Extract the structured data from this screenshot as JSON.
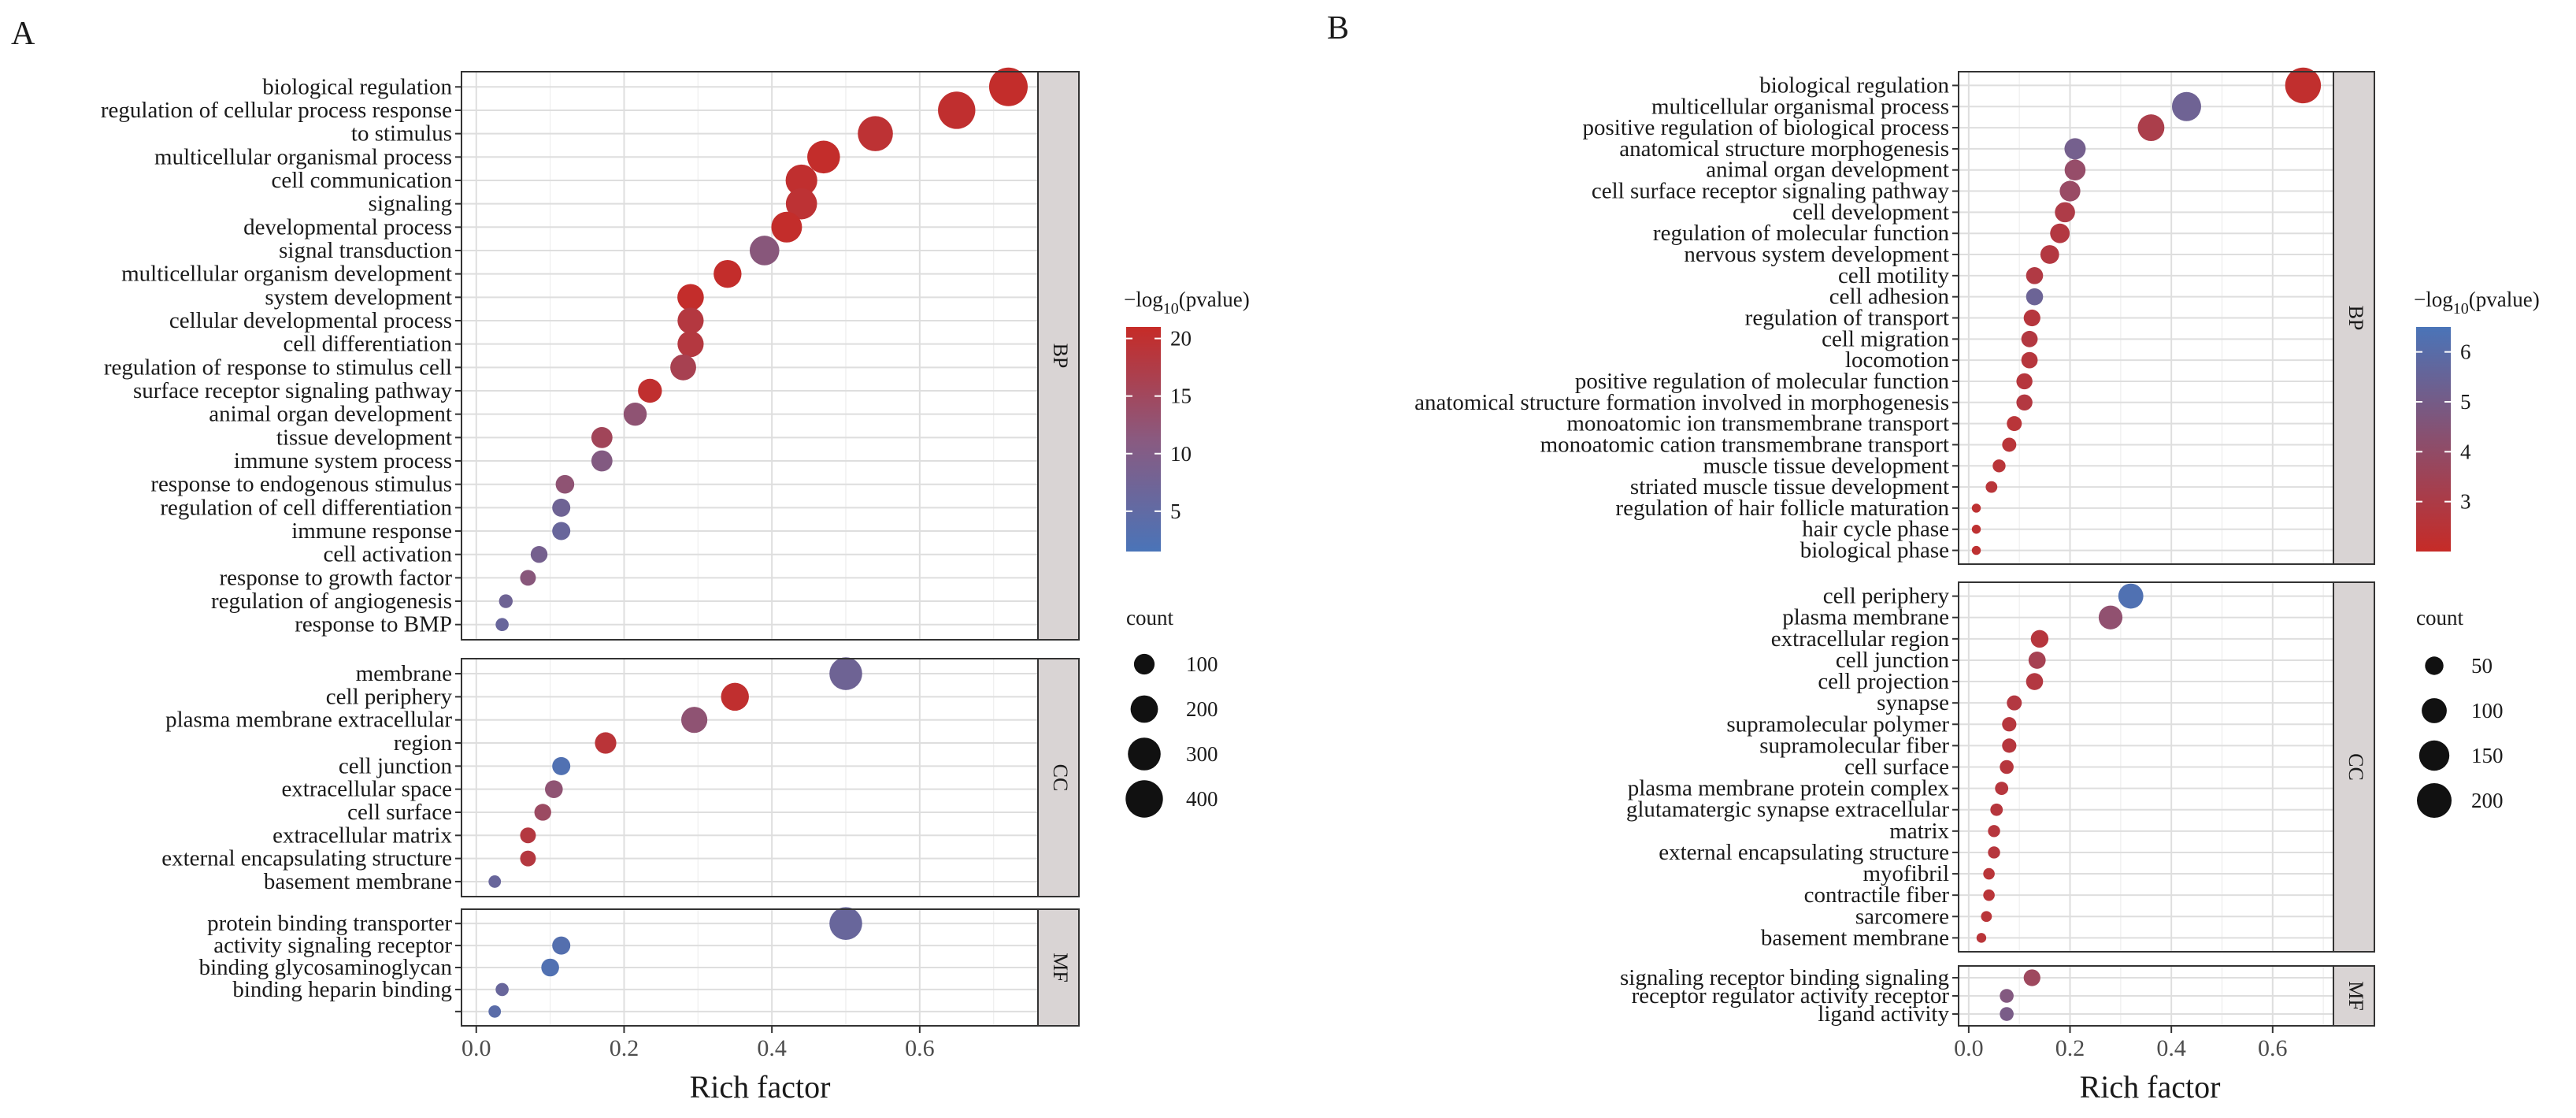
{
  "chart_data": [
    {
      "panel": "A",
      "type": "scatter",
      "xlabel": "Rich factor",
      "x_ticks": [
        "0.0",
        "0.2",
        "0.4",
        "0.6"
      ],
      "xlim": [
        -0.02,
        0.76
      ],
      "color_legend": {
        "title_prefix": "−log",
        "title_sub": "10",
        "title_suffix": "(pvalue)",
        "range": [
          1.5,
          21
        ],
        "ticks": [
          "5",
          "10",
          "15",
          "20"
        ],
        "low_color": "#4a74b8",
        "high_color": "#c62b27"
      },
      "size_legend": {
        "title": "count",
        "range": [
          5,
          450
        ],
        "values": [
          "100",
          "200",
          "300",
          "400"
        ]
      },
      "facets": [
        {
          "label": "BP",
          "terms": [
            {
              "label": "biological regulation",
              "x": 0.72,
              "p": 20.5,
              "count": 430
            },
            {
              "label": "regulation of cellular process response",
              "x": 0.65,
              "p": 20,
              "count": 400
            },
            {
              "label": "to stimulus",
              "x": 0.54,
              "p": 19.5,
              "count": 350
            },
            {
              "label": "multicellular organismal process",
              "x": 0.47,
              "p": 20.5,
              "count": 300
            },
            {
              "label": "cell communication",
              "x": 0.44,
              "p": 20,
              "count": 280
            },
            {
              "label": "signaling",
              "x": 0.44,
              "p": 19.5,
              "count": 270
            },
            {
              "label": "developmental process",
              "x": 0.42,
              "p": 20.5,
              "count": 260
            },
            {
              "label": "signal transduction",
              "x": 0.39,
              "p": 11,
              "count": 240
            },
            {
              "label": "multicellular organism development",
              "x": 0.34,
              "p": 20.5,
              "count": 210
            },
            {
              "label": "system development",
              "x": 0.29,
              "p": 20.5,
              "count": 185
            },
            {
              "label": "cellular developmental process",
              "x": 0.29,
              "p": 18,
              "count": 180
            },
            {
              "label": "cell differentiation",
              "x": 0.29,
              "p": 18,
              "count": 180
            },
            {
              "label": "regulation of response to stimulus cell",
              "x": 0.28,
              "p": 16,
              "count": 175
            },
            {
              "label": "surface receptor signaling pathway",
              "x": 0.235,
              "p": 20,
              "count": 145
            },
            {
              "label": "animal organ development",
              "x": 0.215,
              "p": 12,
              "count": 135
            },
            {
              "label": "tissue development",
              "x": 0.17,
              "p": 15,
              "count": 105
            },
            {
              "label": "immune system process",
              "x": 0.17,
              "p": 10,
              "count": 105
            },
            {
              "label": "response to endogenous stimulus",
              "x": 0.12,
              "p": 12,
              "count": 75
            },
            {
              "label": "regulation of cell differentiation",
              "x": 0.115,
              "p": 7,
              "count": 70
            },
            {
              "label": "immune response",
              "x": 0.115,
              "p": 6,
              "count": 70
            },
            {
              "label": "cell activation",
              "x": 0.085,
              "p": 8,
              "count": 55
            },
            {
              "label": "response to growth factor",
              "x": 0.07,
              "p": 11,
              "count": 45
            },
            {
              "label": "regulation of angiogenesis",
              "x": 0.04,
              "p": 7,
              "count": 25
            },
            {
              "label": "response to BMP",
              "x": 0.035,
              "p": 6,
              "count": 20
            }
          ]
        },
        {
          "label": "CC",
          "terms": [
            {
              "label": "membrane",
              "x": 0.5,
              "p": 7,
              "count": 300
            },
            {
              "label": "cell periphery",
              "x": 0.35,
              "p": 20,
              "count": 210
            },
            {
              "label": "plasma membrane extracellular",
              "x": 0.295,
              "p": 12,
              "count": 180
            },
            {
              "label": "region",
              "x": 0.175,
              "p": 19,
              "count": 110
            },
            {
              "label": "cell junction",
              "x": 0.115,
              "p": 2.5,
              "count": 70
            },
            {
              "label": "extracellular space",
              "x": 0.105,
              "p": 12,
              "count": 65
            },
            {
              "label": "cell surface",
              "x": 0.09,
              "p": 14,
              "count": 55
            },
            {
              "label": "extracellular matrix",
              "x": 0.07,
              "p": 18,
              "count": 45
            },
            {
              "label": "external encapsulating structure",
              "x": 0.07,
              "p": 18,
              "count": 45
            },
            {
              "label": "basement membrane",
              "x": 0.025,
              "p": 6,
              "count": 15
            }
          ]
        },
        {
          "label": "MF",
          "terms": [
            {
              "label": "protein binding transporter",
              "x": 0.5,
              "p": 6,
              "count": 300
            },
            {
              "label": "activity signaling receptor",
              "x": 0.115,
              "p": 3,
              "count": 70
            },
            {
              "label": "binding glycosaminoglycan",
              "x": 0.1,
              "p": 2.5,
              "count": 65
            },
            {
              "label": "binding heparin binding",
              "x": 0.035,
              "p": 6,
              "count": 20
            },
            {
              "label": "",
              "x": 0.025,
              "p": 4,
              "count": 15
            }
          ]
        }
      ]
    },
    {
      "panel": "B",
      "type": "scatter",
      "xlabel": "Rich factor",
      "x_ticks": [
        "0.0",
        "0.2",
        "0.4",
        "0.6"
      ],
      "xlim": [
        -0.02,
        0.72
      ],
      "color_legend": {
        "title_prefix": "−log",
        "title_sub": "10",
        "title_suffix": "(pvalue)",
        "range": [
          2,
          6.5
        ],
        "ticks": [
          "3",
          "4",
          "5",
          "6"
        ],
        "low_color": "#c62b27",
        "high_color": "#4a74b8"
      },
      "size_legend": {
        "title": "count",
        "range": [
          2,
          220
        ],
        "values": [
          "50",
          "100",
          "150",
          "200"
        ]
      },
      "facets": [
        {
          "label": "BP",
          "terms": [
            {
              "label": "biological regulation",
              "x": 0.66,
              "p": 2.2,
              "count": 215
            },
            {
              "label": "multicellular organismal process",
              "x": 0.43,
              "p": 5.2,
              "count": 140
            },
            {
              "label": "positive regulation of biological process",
              "x": 0.36,
              "p": 3,
              "count": 115
            },
            {
              "label": "anatomical structure morphogenesis",
              "x": 0.21,
              "p": 5,
              "count": 70
            },
            {
              "label": "animal organ development",
              "x": 0.21,
              "p": 3.8,
              "count": 68
            },
            {
              "label": "cell surface receptor signaling pathway",
              "x": 0.2,
              "p": 3.7,
              "count": 65
            },
            {
              "label": "cell development",
              "x": 0.19,
              "p": 2.9,
              "count": 62
            },
            {
              "label": "regulation of molecular function",
              "x": 0.18,
              "p": 2.7,
              "count": 58
            },
            {
              "label": "nervous system development",
              "x": 0.16,
              "p": 2.7,
              "count": 52
            },
            {
              "label": "cell motility",
              "x": 0.13,
              "p": 2.8,
              "count": 42
            },
            {
              "label": "cell adhesion",
              "x": 0.13,
              "p": 5.3,
              "count": 42
            },
            {
              "label": "regulation of transport",
              "x": 0.125,
              "p": 2.6,
              "count": 40
            },
            {
              "label": "cell migration",
              "x": 0.12,
              "p": 2.7,
              "count": 38
            },
            {
              "label": "locomotion",
              "x": 0.12,
              "p": 2.6,
              "count": 38
            },
            {
              "label": "positive regulation of molecular function",
              "x": 0.11,
              "p": 2.6,
              "count": 36
            },
            {
              "label": "anatomical structure formation involved in morphogenesis",
              "x": 0.11,
              "p": 2.7,
              "count": 36
            },
            {
              "label": "monoatomic ion transmembrane transport",
              "x": 0.09,
              "p": 2.5,
              "count": 30
            },
            {
              "label": "monoatomic cation transmembrane transport",
              "x": 0.08,
              "p": 2.5,
              "count": 26
            },
            {
              "label": "muscle tissue development",
              "x": 0.06,
              "p": 2.5,
              "count": 20
            },
            {
              "label": "striated muscle tissue development",
              "x": 0.045,
              "p": 2.5,
              "count": 15
            },
            {
              "label": "regulation of hair follicle maturation",
              "x": 0.015,
              "p": 2.3,
              "count": 5
            },
            {
              "label": "hair cycle phase",
              "x": 0.015,
              "p": 2.3,
              "count": 5
            },
            {
              "label": "biological phase",
              "x": 0.015,
              "p": 2.3,
              "count": 5
            }
          ]
        },
        {
          "label": "CC",
          "terms": [
            {
              "label": "cell periphery",
              "x": 0.32,
              "p": 6.3,
              "count": 100
            },
            {
              "label": "plasma membrane",
              "x": 0.28,
              "p": 4,
              "count": 90
            },
            {
              "label": "extracellular region",
              "x": 0.14,
              "p": 2.6,
              "count": 45
            },
            {
              "label": "cell junction",
              "x": 0.135,
              "p": 3.2,
              "count": 43
            },
            {
              "label": "cell projection",
              "x": 0.13,
              "p": 2.7,
              "count": 42
            },
            {
              "label": "synapse",
              "x": 0.09,
              "p": 2.7,
              "count": 30
            },
            {
              "label": "supramolecular polymer",
              "x": 0.08,
              "p": 2.6,
              "count": 27
            },
            {
              "label": "supramolecular fiber",
              "x": 0.08,
              "p": 2.6,
              "count": 27
            },
            {
              "label": "cell surface",
              "x": 0.075,
              "p": 2.6,
              "count": 25
            },
            {
              "label": "plasma membrane protein complex",
              "x": 0.065,
              "p": 2.6,
              "count": 22
            },
            {
              "label": "glutamatergic synapse extracellular",
              "x": 0.055,
              "p": 2.6,
              "count": 18
            },
            {
              "label": "matrix",
              "x": 0.05,
              "p": 2.6,
              "count": 17
            },
            {
              "label": "external encapsulating structure",
              "x": 0.05,
              "p": 2.6,
              "count": 17
            },
            {
              "label": "myofibril",
              "x": 0.04,
              "p": 2.5,
              "count": 14
            },
            {
              "label": "contractile fiber",
              "x": 0.04,
              "p": 2.5,
              "count": 14
            },
            {
              "label": "sarcomere",
              "x": 0.035,
              "p": 2.5,
              "count": 12
            },
            {
              "label": "basement membrane",
              "x": 0.025,
              "p": 2.5,
              "count": 8
            }
          ]
        },
        {
          "label": "MF",
          "terms": [
            {
              "label": "signaling receptor binding signaling",
              "x": 0.125,
              "p": 3.5,
              "count": 40
            },
            {
              "label": "receptor regulator activity receptor",
              "x": 0.075,
              "p": 4.5,
              "count": 25
            },
            {
              "label": "ligand activity",
              "x": 0.075,
              "p": 4.8,
              "count": 25
            }
          ]
        }
      ]
    }
  ]
}
